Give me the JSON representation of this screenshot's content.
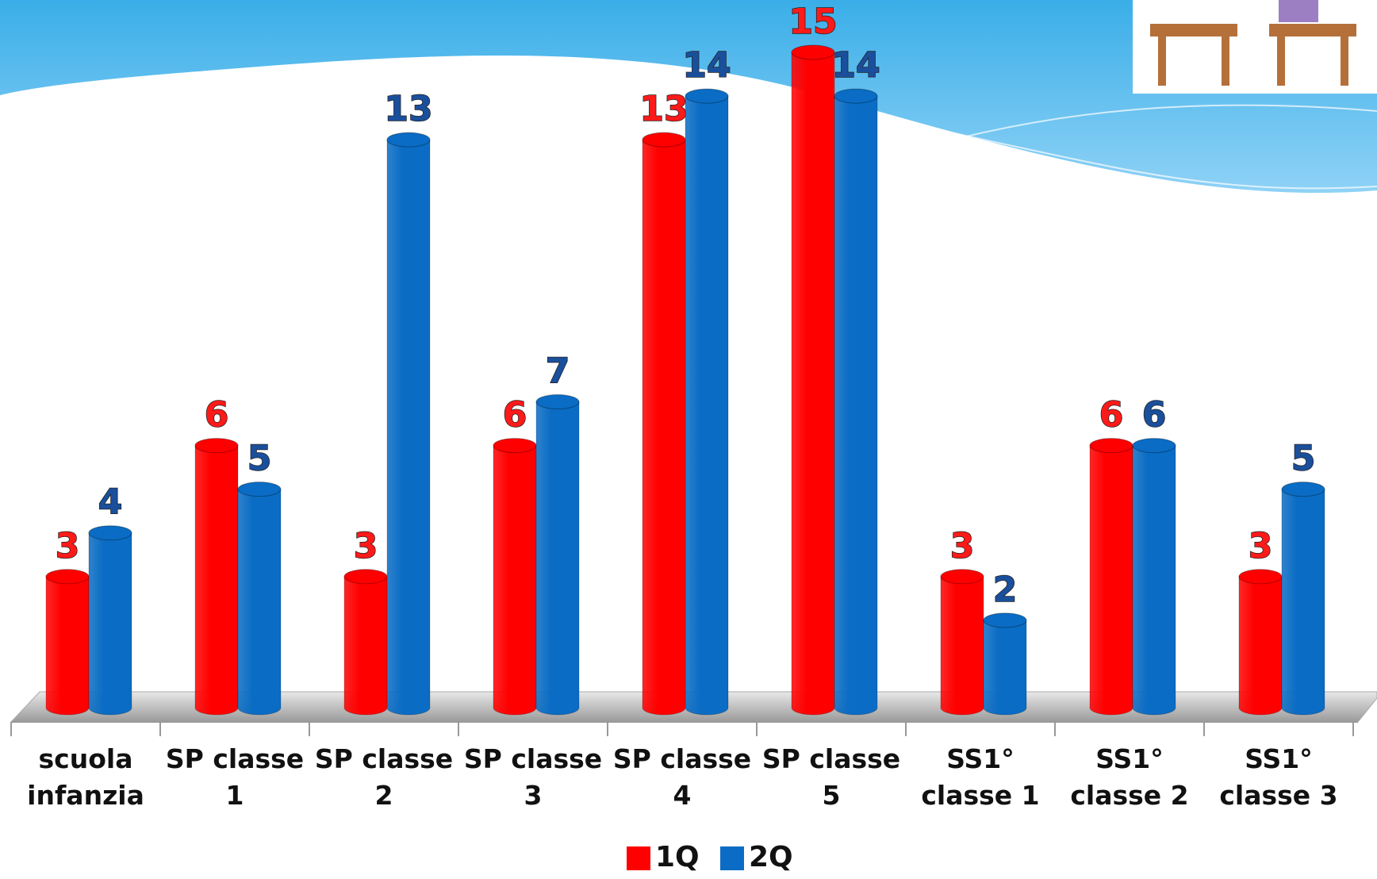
{
  "chart_data": {
    "type": "bar",
    "categories": [
      "scuola infanzia",
      "SP classe 1",
      "SP classe 2",
      "SP classe 3",
      "SP classe 4",
      "SP classe 5",
      "SS1° classe 1",
      "SS1° classe 2",
      "SS1° classe 3"
    ],
    "series": [
      {
        "name": "1Q",
        "color": "#ff0000",
        "values": [
          3,
          6,
          3,
          6,
          13,
          15,
          3,
          6,
          3
        ]
      },
      {
        "name": "2Q",
        "color": "#0a6cc4",
        "values": [
          4,
          5,
          13,
          7,
          14,
          14,
          2,
          6,
          5
        ]
      }
    ],
    "label_colors": [
      "#ff1a1a",
      "#1a4f9c"
    ],
    "legend": "bottom"
  }
}
